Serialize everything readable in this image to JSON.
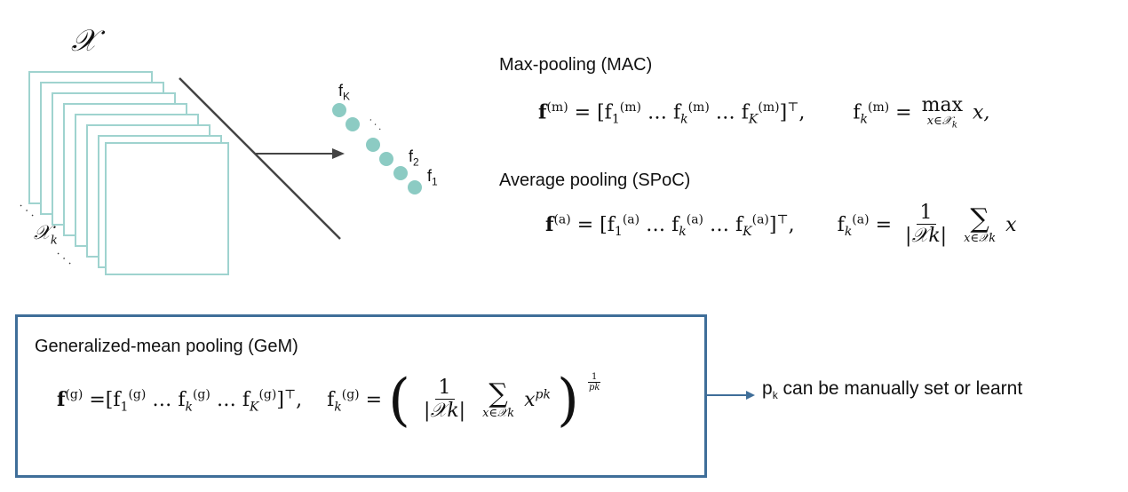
{
  "diagram": {
    "tensor_label": "𝒳",
    "slice_label": "𝒳",
    "slice_sub": "k",
    "vector_labels": {
      "top": "f",
      "top_sub": "K",
      "mid": "f",
      "mid_sub": "2",
      "last": "f",
      "last_sub": "1"
    },
    "colors": {
      "map_border": "#9fd3cf",
      "vector_dot": "#8ccbc3",
      "arrow": "#444444",
      "box_border": "#3f6e99",
      "note_arrow": "#3f6e99"
    }
  },
  "sections": {
    "max": {
      "title": "Max-pooling (MAC)",
      "sup": "(m)",
      "op": "max",
      "op_sub": "x∈𝒳",
      "tail": "x,"
    },
    "avg": {
      "title": "Average pooling (SPoC)",
      "sup": "(a)",
      "num": "1",
      "den": "|𝒳k|",
      "op": "∑",
      "op_sub": "x∈𝒳k",
      "tail": "x"
    },
    "gem": {
      "title": "Generalized-mean pooling (GeM)",
      "sup": "(g)",
      "num": "1",
      "den": "|𝒳k|",
      "op": "∑",
      "op_sub": "x∈𝒳k",
      "power": "pk",
      "outer_exp_num": "1",
      "outer_exp_den": "pk"
    }
  },
  "note": {
    "symbol": "p",
    "symbol_sub": "k",
    "text": " can be manually set or learnt"
  }
}
